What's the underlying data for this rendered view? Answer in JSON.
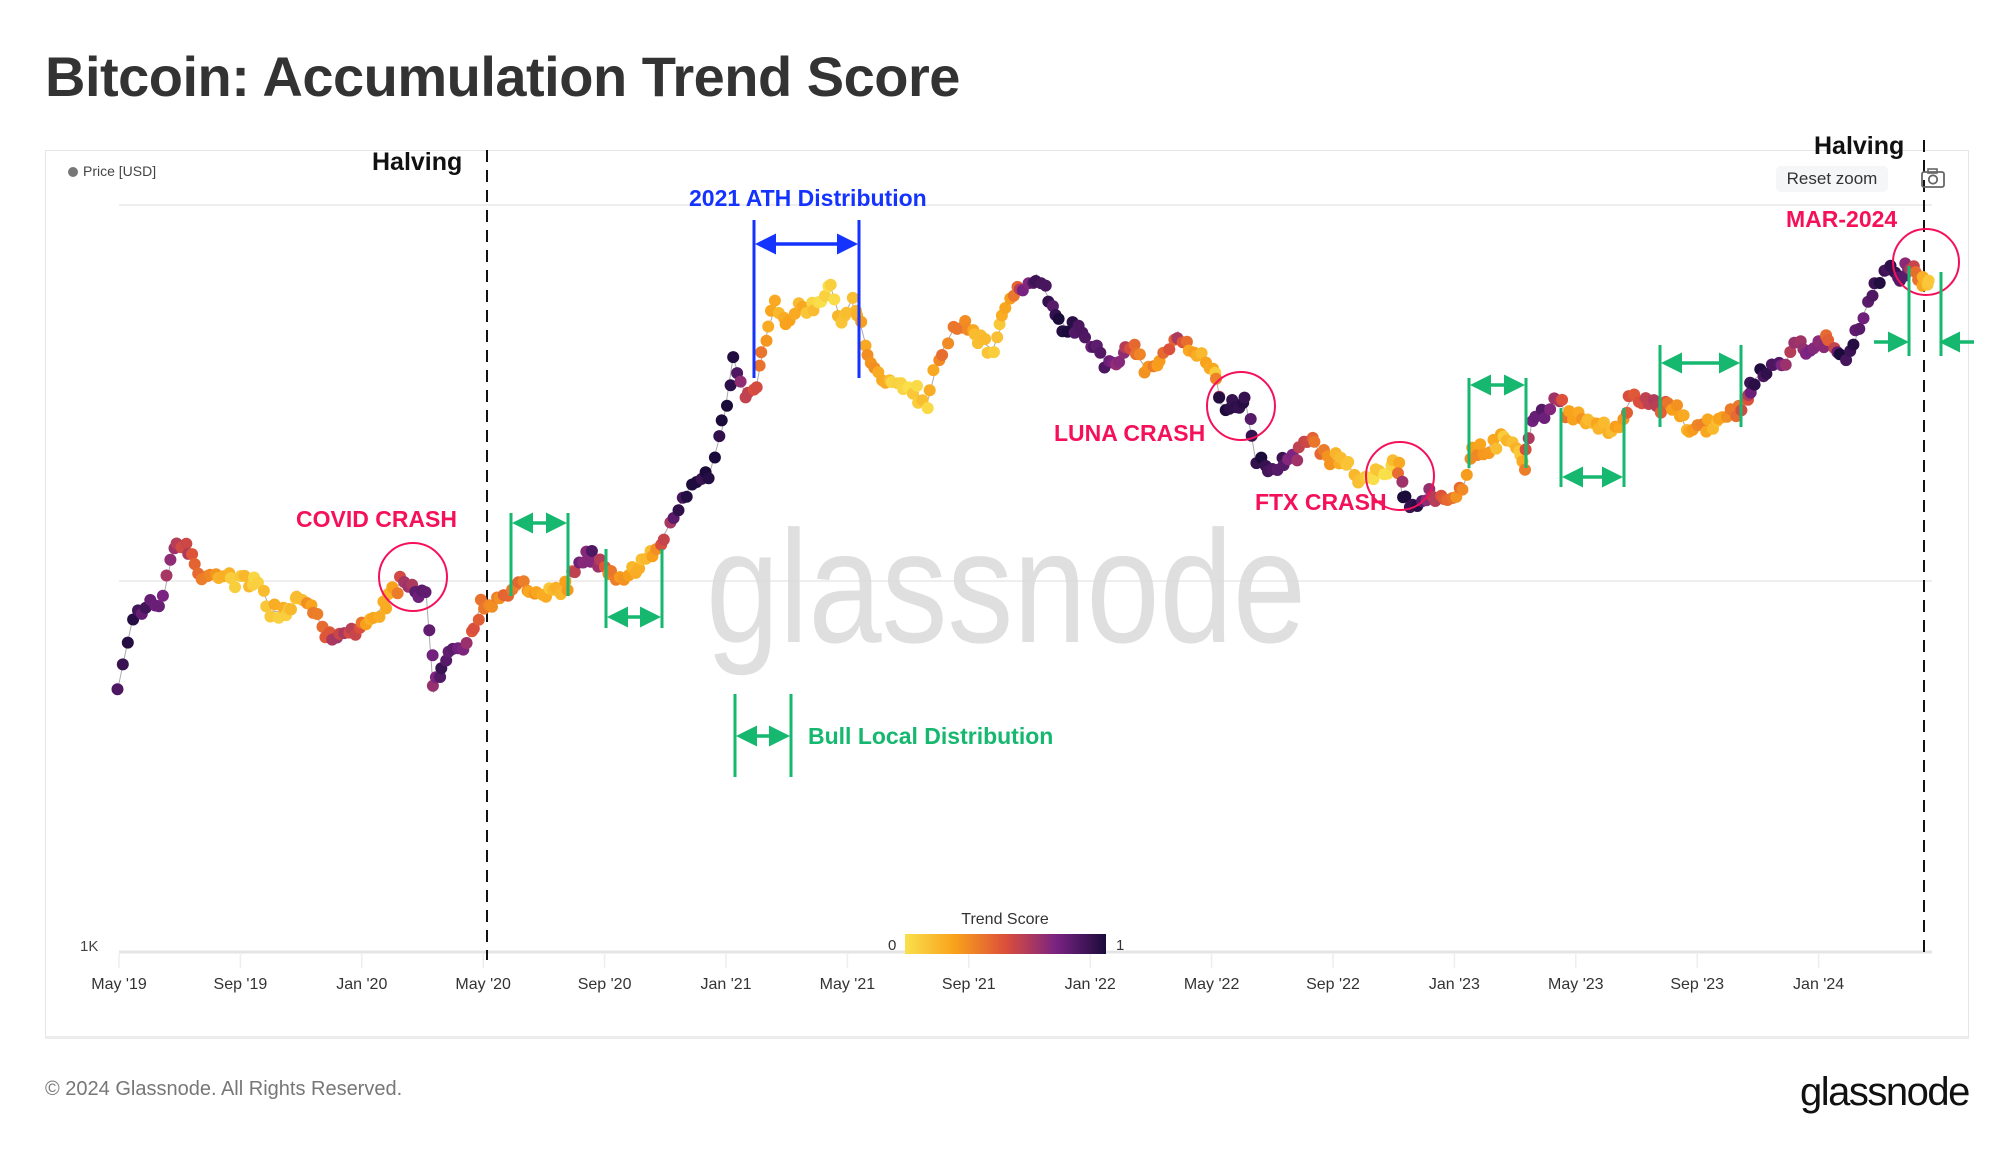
{
  "title": "Bitcoin: Accumulation Trend Score",
  "footer": {
    "copyright": "© 2024 Glassnode. All Rights Reserved.",
    "logo": "glassnode"
  },
  "watermark": "glassnode",
  "controls": {
    "reset_zoom": "Reset zoom",
    "export_icon": "camera-icon"
  },
  "colors": {
    "score_0": "#f9e04b",
    "score_025": "#f9a11b",
    "score_05": "#dc4f3b",
    "score_075": "#7a2383",
    "score_1": "#1b0b3b",
    "annotation_red": "#f5115a",
    "annotation_blue": "#1433ff",
    "annotation_green": "#15b86e"
  },
  "annotations": {
    "halving_1": "Halving",
    "halving_2": "Halving",
    "ath": "2021 ATH Distribution",
    "covid": "COVID CRASH",
    "luna": "LUNA CRASH",
    "ftx": "FTX CRASH",
    "mar2024": "MAR-2024",
    "bull_local": "Bull Local Distribution"
  },
  "chart_data": {
    "type": "scatter",
    "title": "Bitcoin: Accumulation Trend Score",
    "series_name": "Price [USD]",
    "yscale": "log",
    "ylim": [
      1000,
      100000
    ],
    "y_tick_labels": [
      "1K"
    ],
    "x_ticks": [
      "May '19",
      "Sep '19",
      "Jan '20",
      "May '20",
      "Sep '20",
      "Jan '21",
      "May '21",
      "Sep '21",
      "Jan '22",
      "May '22",
      "Sep '22",
      "Jan '23",
      "May '23",
      "Sep '23",
      "Jan '24"
    ],
    "colorbar": {
      "title": "Trend Score",
      "min_label": "0",
      "max_label": "1",
      "range": [
        0,
        1
      ]
    },
    "halvings": [
      "2020-05-11",
      "2024-04-20"
    ],
    "points": [
      [
        "2019-05-01",
        5300,
        0.9
      ],
      [
        "2019-05-15",
        8000,
        0.95
      ],
      [
        "2019-06-01",
        8600,
        0.8
      ],
      [
        "2019-06-15",
        9000,
        0.7
      ],
      [
        "2019-06-26",
        12500,
        0.6
      ],
      [
        "2019-07-10",
        12000,
        0.55
      ],
      [
        "2019-07-20",
        10500,
        0.4
      ],
      [
        "2019-08-01",
        10400,
        0.3
      ],
      [
        "2019-08-15",
        10200,
        0.15
      ],
      [
        "2019-09-01",
        10000,
        0.1
      ],
      [
        "2019-09-20",
        10000,
        0.1
      ],
      [
        "2019-10-01",
        8300,
        0.15
      ],
      [
        "2019-10-20",
        8200,
        0.1
      ],
      [
        "2019-10-28",
        9400,
        0.2
      ],
      [
        "2019-11-10",
        8800,
        0.25
      ],
      [
        "2019-11-25",
        7200,
        0.5
      ],
      [
        "2019-12-10",
        7300,
        0.6
      ],
      [
        "2019-12-25",
        7200,
        0.55
      ],
      [
        "2020-01-10",
        8000,
        0.2
      ],
      [
        "2020-01-25",
        8600,
        0.15
      ],
      [
        "2020-02-10",
        10000,
        0.5
      ],
      [
        "2020-02-25",
        9600,
        0.75
      ],
      [
        "2020-03-05",
        9000,
        0.85
      ],
      [
        "2020-03-12",
        5000,
        0.75
      ],
      [
        "2020-03-20",
        6000,
        0.85
      ],
      [
        "2020-04-01",
        6600,
        0.8
      ],
      [
        "2020-04-15",
        6800,
        0.6
      ],
      [
        "2020-04-30",
        8700,
        0.35
      ],
      [
        "2020-05-10",
        8800,
        0.3
      ],
      [
        "2020-05-25",
        9000,
        0.4
      ],
      [
        "2020-06-10",
        9700,
        0.4
      ],
      [
        "2020-06-25",
        9200,
        0.2
      ],
      [
        "2020-07-10",
        9250,
        0.15
      ],
      [
        "2020-07-25",
        9700,
        0.25
      ],
      [
        "2020-08-05",
        11500,
        0.75
      ],
      [
        "2020-08-20",
        11800,
        0.8
      ],
      [
        "2020-09-05",
        10200,
        0.4
      ],
      [
        "2020-09-20",
        10500,
        0.25
      ],
      [
        "2020-10-05",
        10700,
        0.2
      ],
      [
        "2020-10-20",
        12000,
        0.2
      ],
      [
        "2020-11-01",
        13500,
        0.6
      ],
      [
        "2020-11-15",
        16000,
        0.9
      ],
      [
        "2020-12-01",
        19000,
        0.95
      ],
      [
        "2020-12-15",
        19500,
        0.95
      ],
      [
        "2020-12-28",
        26000,
        1.0
      ],
      [
        "2021-01-08",
        40000,
        1.0
      ],
      [
        "2021-01-20",
        32000,
        0.6
      ],
      [
        "2021-02-01",
        33500,
        0.5
      ],
      [
        "2021-02-10",
        45000,
        0.3
      ],
      [
        "2021-02-20",
        55000,
        0.2
      ],
      [
        "2021-03-01",
        48000,
        0.25
      ],
      [
        "2021-03-12",
        57000,
        0.2
      ],
      [
        "2021-03-25",
        54000,
        0.1
      ],
      [
        "2021-04-05",
        58000,
        0.05
      ],
      [
        "2021-04-14",
        63000,
        0.05
      ],
      [
        "2021-04-25",
        50000,
        0.15
      ],
      [
        "2021-05-05",
        57000,
        0.1
      ],
      [
        "2021-05-15",
        48000,
        0.25
      ],
      [
        "2021-05-25",
        38000,
        0.35
      ],
      [
        "2021-06-05",
        36000,
        0.15
      ],
      [
        "2021-06-20",
        33000,
        0.1
      ],
      [
        "2021-07-01",
        34000,
        0.05
      ],
      [
        "2021-07-20",
        30000,
        0.1
      ],
      [
        "2021-08-01",
        40000,
        0.3
      ],
      [
        "2021-08-15",
        47000,
        0.4
      ],
      [
        "2021-09-01",
        49000,
        0.35
      ],
      [
        "2021-09-10",
        45000,
        0.15
      ],
      [
        "2021-09-25",
        42000,
        0.05
      ],
      [
        "2021-10-05",
        50000,
        0.2
      ],
      [
        "2021-10-15",
        60000,
        0.35
      ],
      [
        "2021-10-25",
        61000,
        0.7
      ],
      [
        "2021-11-08",
        67000,
        0.85
      ],
      [
        "2021-11-20",
        58000,
        0.9
      ],
      [
        "2021-12-05",
        49000,
        0.95
      ],
      [
        "2021-12-20",
        47000,
        0.9
      ],
      [
        "2022-01-05",
        43000,
        0.85
      ],
      [
        "2022-01-20",
        38000,
        0.8
      ],
      [
        "2022-02-01",
        38000,
        0.7
      ],
      [
        "2022-02-10",
        43000,
        0.5
      ],
      [
        "2022-02-25",
        38000,
        0.35
      ],
      [
        "2022-03-10",
        39000,
        0.3
      ],
      [
        "2022-03-28",
        47000,
        0.6
      ],
      [
        "2022-04-10",
        42000,
        0.3
      ],
      [
        "2022-04-25",
        39000,
        0.2
      ],
      [
        "2022-05-05",
        36000,
        0.15
      ],
      [
        "2022-05-10",
        30000,
        0.95
      ],
      [
        "2022-05-25",
        29500,
        0.95
      ],
      [
        "2022-06-05",
        30000,
        0.9
      ],
      [
        "2022-06-15",
        21000,
        0.95
      ],
      [
        "2022-06-28",
        20000,
        0.95
      ],
      [
        "2022-07-10",
        21000,
        0.9
      ],
      [
        "2022-07-25",
        22000,
        0.6
      ],
      [
        "2022-08-10",
        24000,
        0.5
      ],
      [
        "2022-08-25",
        21000,
        0.3
      ],
      [
        "2022-09-10",
        21500,
        0.15
      ],
      [
        "2022-09-25",
        19000,
        0.1
      ],
      [
        "2022-10-10",
        19200,
        0.05
      ],
      [
        "2022-10-25",
        20000,
        0.05
      ],
      [
        "2022-11-05",
        21000,
        0.2
      ],
      [
        "2022-11-10",
        16500,
        0.95
      ],
      [
        "2022-11-25",
        16500,
        0.95
      ],
      [
        "2022-12-10",
        17200,
        0.6
      ],
      [
        "2022-12-25",
        16800,
        0.35
      ],
      [
        "2023-01-10",
        18000,
        0.35
      ],
      [
        "2023-01-20",
        22000,
        0.3
      ],
      [
        "2023-02-05",
        23000,
        0.2
      ],
      [
        "2023-02-20",
        24500,
        0.15
      ],
      [
        "2023-03-05",
        22300,
        0.1
      ],
      [
        "2023-03-10",
        20000,
        0.3
      ],
      [
        "2023-03-18",
        27000,
        0.8
      ],
      [
        "2023-04-01",
        28500,
        0.8
      ],
      [
        "2023-04-14",
        30400,
        0.6
      ],
      [
        "2023-04-25",
        28000,
        0.3
      ],
      [
        "2023-05-10",
        27500,
        0.2
      ],
      [
        "2023-05-25",
        26500,
        0.15
      ],
      [
        "2023-06-10",
        25800,
        0.2
      ],
      [
        "2023-06-25",
        30500,
        0.5
      ],
      [
        "2023-07-10",
        30500,
        0.6
      ],
      [
        "2023-07-25",
        29300,
        0.5
      ],
      [
        "2023-08-10",
        29500,
        0.25
      ],
      [
        "2023-08-20",
        26000,
        0.2
      ],
      [
        "2023-09-05",
        25800,
        0.3
      ],
      [
        "2023-09-20",
        27000,
        0.2
      ],
      [
        "2023-10-05",
        27800,
        0.3
      ],
      [
        "2023-10-20",
        30000,
        0.5
      ],
      [
        "2023-10-25",
        34500,
        0.95
      ],
      [
        "2023-11-10",
        37000,
        0.95
      ],
      [
        "2023-11-25",
        37500,
        0.75
      ],
      [
        "2023-12-08",
        43000,
        0.6
      ],
      [
        "2023-12-20",
        42500,
        0.7
      ],
      [
        "2024-01-05",
        44000,
        0.65
      ],
      [
        "2024-01-12",
        46500,
        0.4
      ],
      [
        "2024-01-23",
        39500,
        0.95
      ],
      [
        "2024-02-05",
        42500,
        0.9
      ],
      [
        "2024-02-15",
        52000,
        0.85
      ],
      [
        "2024-02-28",
        62000,
        0.95
      ],
      [
        "2024-03-10",
        70000,
        0.95
      ],
      [
        "2024-03-20",
        64000,
        0.9
      ],
      [
        "2024-03-28",
        70000,
        0.75
      ],
      [
        "2024-04-05",
        68000,
        0.5
      ],
      [
        "2024-04-13",
        64000,
        0.3
      ],
      [
        "2024-04-20",
        64500,
        0.1
      ]
    ]
  }
}
